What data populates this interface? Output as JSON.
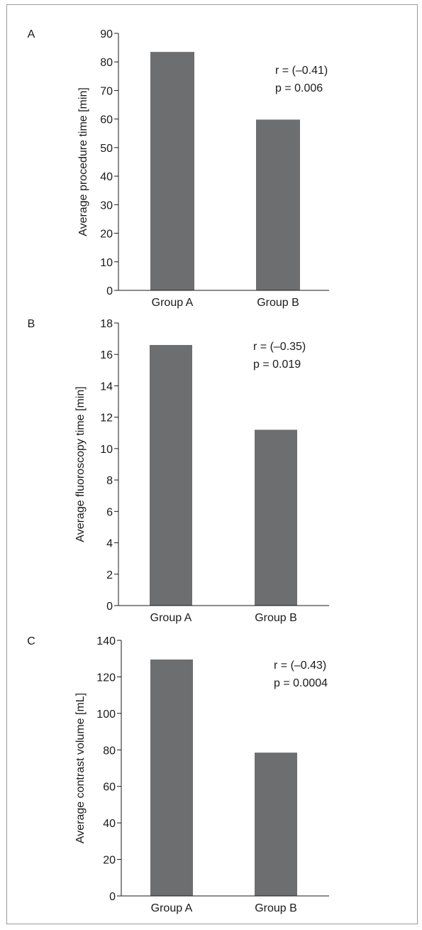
{
  "colors": {
    "bar": "#6d6e70",
    "axis": "#1a1a1a",
    "border": "#9a9a9a"
  },
  "chart_data": [
    {
      "panel_label": "A",
      "type": "bar",
      "categories": [
        "Group A",
        "Group B"
      ],
      "values": [
        83.5,
        59.8
      ],
      "ylabel": "Average procedure time [min]",
      "ylim": [
        0,
        90
      ],
      "yticks": [
        0,
        10,
        20,
        30,
        40,
        50,
        60,
        70,
        80,
        90
      ],
      "annotation": [
        "r = (–0.41)",
        "p = 0.006"
      ]
    },
    {
      "panel_label": "B",
      "type": "bar",
      "categories": [
        "Group A",
        "Group B"
      ],
      "values": [
        16.6,
        11.2
      ],
      "ylabel": "Average fluoroscopy time [min]",
      "ylim": [
        0,
        18
      ],
      "yticks": [
        0,
        2,
        4,
        6,
        8,
        10,
        12,
        14,
        16,
        18
      ],
      "annotation": [
        "r = (–0.35)",
        "p = 0.019"
      ]
    },
    {
      "panel_label": "C",
      "type": "bar",
      "categories": [
        "Group A",
        "Group B"
      ],
      "values": [
        129.5,
        78.5
      ],
      "ylabel": "Average contrast volume [mL]",
      "ylim": [
        0,
        140
      ],
      "yticks": [
        0,
        20,
        40,
        60,
        80,
        100,
        120,
        140
      ],
      "annotation": [
        "r = (–0.43)",
        "p = 0.0004"
      ]
    }
  ]
}
